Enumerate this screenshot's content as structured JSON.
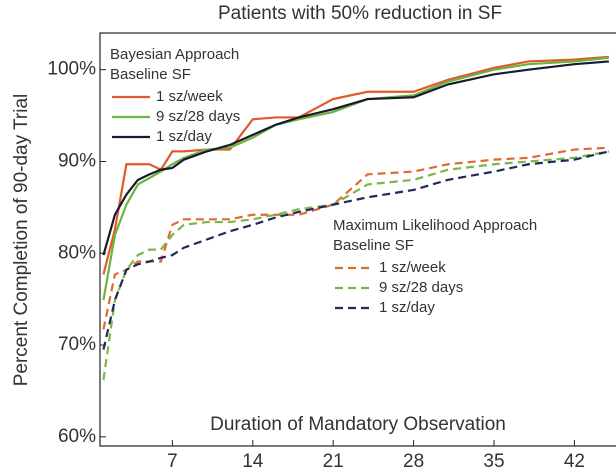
{
  "chart_data": {
    "type": "line",
    "title": "Patients with 50% reduction in SF",
    "x_label": "Duration of Mandatory Observation",
    "y_label": "Percent Completion of 90-day Trial",
    "x": [
      1,
      2,
      3,
      4,
      5,
      6,
      7,
      8,
      10,
      12,
      14,
      16,
      18,
      21,
      24,
      28,
      31,
      35,
      38,
      42,
      45
    ],
    "xlim": [
      0.7,
      45.1
    ],
    "xticks": [
      7,
      14,
      21,
      28,
      35,
      42
    ],
    "ylim": [
      59,
      104
    ],
    "yticks": [
      {
        "value": 60,
        "label": "60%"
      },
      {
        "value": 70,
        "label": "70%"
      },
      {
        "value": 80,
        "label": "80%"
      },
      {
        "value": 90,
        "label": "90%"
      },
      {
        "value": 100,
        "label": "100%"
      }
    ],
    "legend_groups": [
      {
        "title": "Bayesian Approach",
        "subtitle": "Baseline SF",
        "style": "solid"
      },
      {
        "title": "Maximum Likelihood Approach",
        "subtitle": "Baseline SF",
        "style": "dashed"
      }
    ],
    "series": [
      {
        "name": "1 sz/week",
        "color": "#e05a2b",
        "style": "solid",
        "values": [
          77.7,
          82.6,
          89.7,
          89.7,
          89.7,
          89.1,
          91.1,
          91.1,
          91.3,
          91.3,
          94.6,
          94.8,
          94.8,
          96.8,
          97.6,
          97.6,
          98.9,
          100.2,
          100.9,
          101.1,
          101.4
        ]
      },
      {
        "name": "9 sz/28 days",
        "color": "#6db33f",
        "style": "solid",
        "values": [
          74.9,
          82.0,
          85.3,
          87.5,
          88.2,
          88.9,
          89.7,
          90.4,
          91.3,
          91.5,
          92.6,
          94.0,
          94.6,
          95.4,
          96.8,
          97.2,
          98.7,
          100.0,
          100.6,
          100.9,
          101.3
        ]
      },
      {
        "name": "1 sz/day",
        "color": "#1a1a2e",
        "style": "solid",
        "values": [
          79.8,
          84.2,
          86.4,
          88.0,
          88.6,
          89.1,
          89.3,
          90.2,
          91.1,
          91.8,
          92.9,
          94.0,
          94.8,
          95.7,
          96.8,
          97.0,
          98.4,
          99.5,
          100.0,
          100.6,
          100.9
        ]
      },
      {
        "name": "1 sz/week",
        "color": "#e06a30",
        "style": "dashed",
        "values": [
          71.7,
          77.7,
          78.2,
          79.1,
          79.1,
          79.1,
          83.1,
          83.7,
          83.7,
          83.7,
          84.2,
          84.2,
          84.2,
          85.3,
          88.6,
          88.9,
          89.7,
          90.2,
          90.4,
          91.3,
          91.5
        ]
      },
      {
        "name": "9 sz/28 days",
        "color": "#7ab648",
        "style": "dashed",
        "values": [
          66.2,
          74.9,
          78.2,
          79.8,
          80.4,
          80.4,
          82.0,
          83.1,
          83.4,
          83.4,
          83.7,
          84.2,
          84.8,
          85.3,
          87.5,
          88.0,
          89.1,
          89.7,
          90.0,
          90.4,
          91.1
        ]
      },
      {
        "name": "1 sz/day",
        "color": "#1f2a5a",
        "style": "dashed",
        "values": [
          69.5,
          74.9,
          78.2,
          78.8,
          79.1,
          79.5,
          79.8,
          80.6,
          81.5,
          82.4,
          83.1,
          83.9,
          84.5,
          85.3,
          86.1,
          86.9,
          88.0,
          88.9,
          89.7,
          90.2,
          91.1
        ]
      }
    ]
  }
}
